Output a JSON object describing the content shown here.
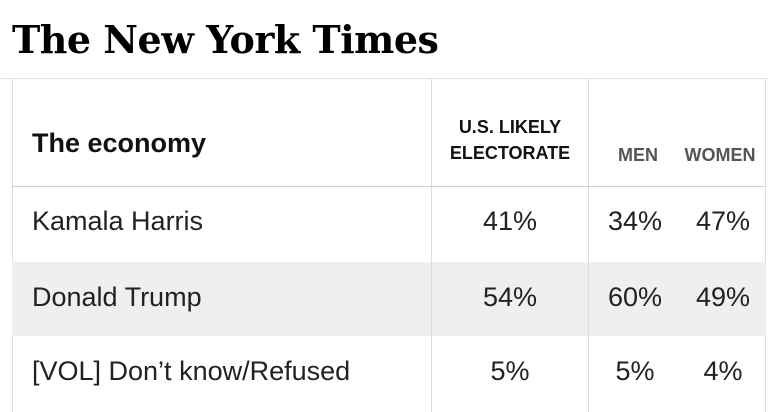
{
  "masthead": {
    "title": "The New York Times"
  },
  "chart_data": {
    "type": "table",
    "title": "The economy",
    "columns": [
      "U.S. LIKELY ELECTORATE",
      "MEN",
      "WOMEN"
    ],
    "column_labels": {
      "electorate_line1": "U.S. LIKELY",
      "electorate_line2": "ELECTORATE",
      "men": "MEN",
      "women": "WOMEN"
    },
    "rows": [
      {
        "label": "Kamala Harris",
        "electorate": "41%",
        "men": "34%",
        "women": "47%"
      },
      {
        "label": "Donald Trump",
        "electorate": "54%",
        "men": "60%",
        "women": "49%"
      },
      {
        "label": "[VOL] Don’t know/Refused",
        "electorate": "5%",
        "men": "5%",
        "women": "4%"
      }
    ],
    "colors": {
      "text": "#121212",
      "muted_header": "#555555",
      "shaded_row": "#efefef",
      "rule": "#cfcfcf"
    }
  }
}
